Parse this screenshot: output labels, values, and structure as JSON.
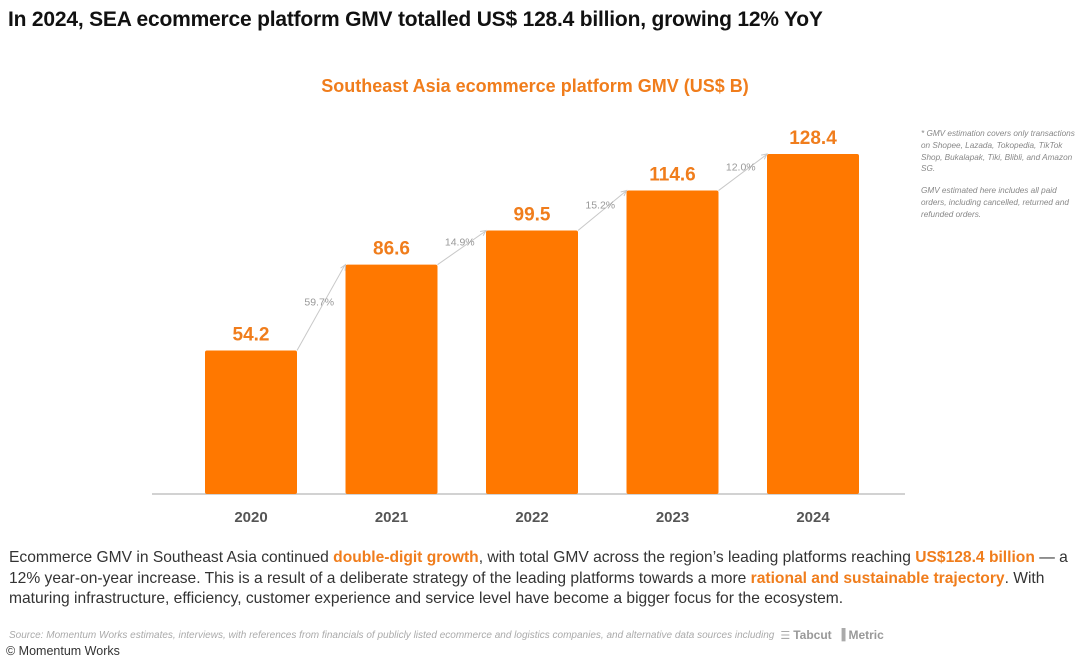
{
  "headline": "In 2024, SEA ecommerce platform GMV totalled US$ 128.4 billion, growing 12% YoY",
  "chart_data": {
    "type": "bar",
    "title": "Southeast Asia ecommerce platform GMV (US$ B)",
    "xlabel": "",
    "ylabel": "",
    "categories": [
      "2020",
      "2021",
      "2022",
      "2023",
      "2024"
    ],
    "values": [
      54.2,
      86.6,
      99.5,
      114.6,
      128.4
    ],
    "value_labels": [
      "54.2",
      "86.6",
      "99.5",
      "114.6",
      "128.4"
    ],
    "growth_rates": [
      "59.7%",
      "14.9%",
      "15.2%",
      "12.0%"
    ],
    "ylim": [
      0,
      128.4
    ],
    "grid": false,
    "bar_color": "#ff7800",
    "label_color": "#f07d1c"
  },
  "notes": [
    "* GMV estimation covers only transactions on Shopee, Lazada, Tokopedia, TikTok Shop, Bukalapak, Tiki, Blibli, and Amazon SG.",
    "GMV estimated here includes all paid orders, including cancelled, returned and refunded orders."
  ],
  "summary": {
    "p1": "Ecommerce GMV in Southeast Asia continued ",
    "h1": "double-digit growth",
    "p2": ", with total GMV across the region’s leading platforms reaching ",
    "h2": "US$128.4 billion",
    "p3": " — a 12% year-on-year increase. This is a result of a deliberate strategy of the leading platforms towards a more ",
    "h3": "rational and sustainable trajectory",
    "p4": ". With maturing infrastructure, efficiency, customer experience and service level have become a bigger focus for the ecosystem."
  },
  "source": {
    "text": "Source: Momentum Works estimates, interviews, with references from financials of publicly listed ecommerce and logistics companies,  and alternative data sources including",
    "logos": [
      {
        "name": "Tabcut",
        "icon": "☰"
      },
      {
        "name": "Metric",
        "icon": "▐"
      }
    ]
  },
  "copyright": "© Momentum Works",
  "colors": {
    "accent": "#f07d1c",
    "bar": "#ff7800"
  }
}
